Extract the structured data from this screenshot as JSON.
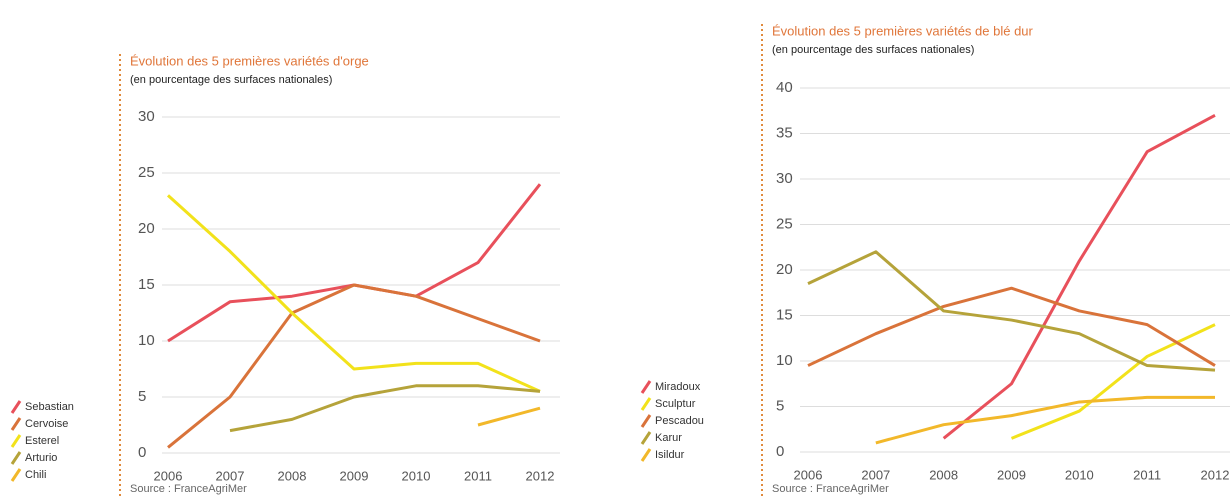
{
  "chart_data": [
    {
      "type": "line",
      "title": "Évolution des 5 premières variétés d'orge",
      "subtitle": "(en pourcentage des surfaces nationales)",
      "source": "Source : FranceAgriMer",
      "categories": [
        "2006",
        "2007",
        "2008",
        "2009",
        "2010",
        "2011",
        "2012"
      ],
      "ylim": [
        0,
        30
      ],
      "yticks": [
        0,
        5,
        10,
        15,
        20,
        25,
        30
      ],
      "grid": true,
      "series": [
        {
          "name": "Sebastian",
          "color": "#e8505b",
          "values": [
            10,
            13.5,
            14,
            15,
            14,
            17,
            24
          ]
        },
        {
          "name": "Cervoise",
          "color": "#d9733a",
          "values": [
            0.5,
            5,
            12.5,
            15,
            14,
            12,
            10
          ]
        },
        {
          "name": "Esterel",
          "color": "#f2e21b",
          "values": [
            23,
            18,
            12.5,
            7.5,
            8,
            8,
            5.5
          ]
        },
        {
          "name": "Arturio",
          "color": "#b5a33a",
          "values": [
            null,
            2,
            3,
            5,
            6,
            6,
            5.5
          ]
        },
        {
          "name": "Chili",
          "color": "#f2b82a",
          "values": [
            null,
            null,
            null,
            null,
            null,
            2.5,
            4
          ]
        }
      ]
    },
    {
      "type": "line",
      "title": "Évolution des 5 premières variétés de blé dur",
      "subtitle": "(en pourcentage des surfaces nationales)",
      "source": "Source : FranceAgriMer",
      "categories": [
        "2006",
        "2007",
        "2008",
        "2009",
        "2010",
        "2011",
        "2012"
      ],
      "ylim": [
        0,
        40
      ],
      "yticks": [
        0,
        5,
        10,
        15,
        20,
        25,
        30,
        35,
        40
      ],
      "grid": true,
      "series": [
        {
          "name": "Miradoux",
          "color": "#e8505b",
          "values": [
            null,
            null,
            1.5,
            7.5,
            21,
            33,
            37
          ]
        },
        {
          "name": "Sculptur",
          "color": "#f2e21b",
          "values": [
            null,
            null,
            null,
            1.5,
            4.5,
            10.5,
            14
          ]
        },
        {
          "name": "Pescadou",
          "color": "#d9733a",
          "values": [
            9.5,
            13,
            16,
            18,
            15.5,
            14,
            9.5
          ]
        },
        {
          "name": "Karur",
          "color": "#b5a33a",
          "values": [
            18.5,
            22,
            15.5,
            14.5,
            13,
            9.5,
            9
          ]
        },
        {
          "name": "Isildur",
          "color": "#f2b82a",
          "values": [
            null,
            1,
            3,
            4,
            5.5,
            6,
            6
          ]
        }
      ]
    }
  ]
}
